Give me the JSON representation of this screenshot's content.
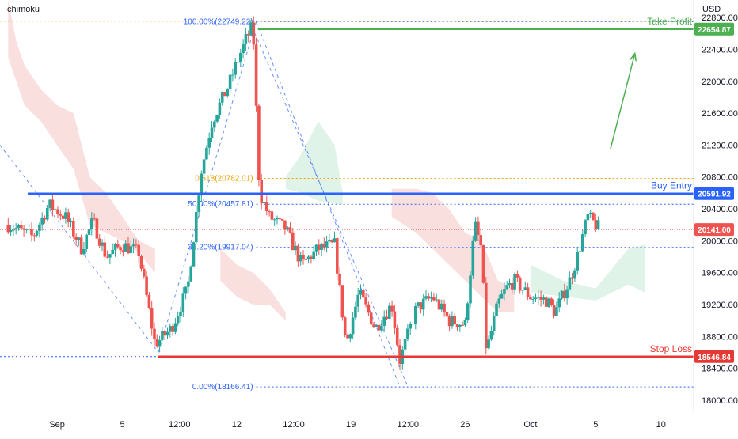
{
  "indicator_label": "Ichimoku",
  "currency_label": "USD",
  "colors": {
    "up": "#26a69a",
    "down": "#ef5350",
    "cloud_bear": "#f8d7d6",
    "cloud_bull": "#d8f0e2",
    "take_profit": "#4caf50",
    "buy_entry": "#2962ff",
    "stop_loss": "#e53935",
    "fib": "#2962ff",
    "fib_618": "#f0a000",
    "current": "#ef5350",
    "arrow": "#4caf50"
  },
  "annotations": {
    "take_profit": {
      "label": "Take Profit",
      "price": 22654.87,
      "badge": "22654.87"
    },
    "buy_entry": {
      "label": "Buy Entry",
      "price": 20591.92,
      "badge": "20591.92"
    },
    "stop_loss": {
      "label": "Stop Loss",
      "price": 18546.84,
      "badge": "18546.84"
    },
    "current_price": {
      "price": 20141.0,
      "badge": "20141.00"
    }
  },
  "chart_data": {
    "type": "candlestick",
    "title": "",
    "ylabel": "USD",
    "ylim": [
      17860,
      23020
    ],
    "price_ticks": [
      {
        "value": 22800,
        "label": "22800.00"
      },
      {
        "value": 22400,
        "label": "22400.00"
      },
      {
        "value": 22000,
        "label": "22000.00"
      },
      {
        "value": 21600,
        "label": "21600.00"
      },
      {
        "value": 21200,
        "label": "21200.00"
      },
      {
        "value": 20800,
        "label": "20800.00"
      },
      {
        "value": 20400,
        "label": "20400.00"
      },
      {
        "value": 20000,
        "label": "20000.00"
      },
      {
        "value": 19600,
        "label": "19600.00"
      },
      {
        "value": 19200,
        "label": "19200.00"
      },
      {
        "value": 18800,
        "label": "18800.00"
      },
      {
        "value": 18400,
        "label": "18400.00"
      },
      {
        "value": 18000,
        "label": "18000.00"
      }
    ],
    "date_ticks": [
      {
        "t": 3,
        "label": "Sep"
      },
      {
        "t": 7,
        "label": "5"
      },
      {
        "t": 10.5,
        "label": "12:00"
      },
      {
        "t": 14,
        "label": "12"
      },
      {
        "t": 17.5,
        "label": "12:00"
      },
      {
        "t": 21,
        "label": "19"
      },
      {
        "t": 24.5,
        "label": "12:00"
      },
      {
        "t": 28,
        "label": "26"
      },
      {
        "t": 32,
        "label": "Oct"
      },
      {
        "t": 36,
        "label": "5"
      },
      {
        "t": 40,
        "label": "10"
      }
    ],
    "x_range": [
      -0.5,
      42
    ],
    "fibonacci": [
      {
        "ratio": "100.00%",
        "price": 22749.22,
        "label": "100.00%(22749.22)",
        "style": "dotted"
      },
      {
        "ratio": "0.618",
        "price": 20782.01,
        "label": "0.618(20782.01)",
        "style": "dotted-orange"
      },
      {
        "ratio": "50.00%",
        "price": 20457.81,
        "label": "50.00%(20457.81)",
        "style": "dotted"
      },
      {
        "ratio": "38.20%",
        "price": 19917.04,
        "label": "38.20%(19917.04)",
        "style": "dotted"
      },
      {
        "ratio": "0.00%",
        "price": 18166.41,
        "label": "0.00%(18166.41)",
        "style": "dotted"
      }
    ],
    "candles_path": [
      [
        0,
        20200
      ],
      [
        1.5,
        20050
      ],
      [
        2.5,
        20450
      ],
      [
        3.5,
        20300
      ],
      [
        4.5,
        19900
      ],
      [
        5.2,
        20250
      ],
      [
        6,
        19800
      ],
      [
        7,
        19950
      ],
      [
        8,
        19850
      ],
      [
        9,
        18700
      ],
      [
        10,
        18900
      ],
      [
        11,
        19400
      ],
      [
        11.8,
        20850
      ],
      [
        12.5,
        21500
      ],
      [
        13.5,
        21950
      ],
      [
        14.5,
        22500
      ],
      [
        15,
        22700
      ],
      [
        15.4,
        20600
      ],
      [
        16,
        20300
      ],
      [
        17,
        20150
      ],
      [
        18,
        19700
      ],
      [
        19,
        19900
      ],
      [
        20,
        19950
      ],
      [
        20.7,
        18700
      ],
      [
        21.5,
        19350
      ],
      [
        22.5,
        18900
      ],
      [
        23.5,
        19200
      ],
      [
        24,
        18500
      ],
      [
        25,
        19150
      ],
      [
        26,
        19300
      ],
      [
        27,
        19000
      ],
      [
        28,
        18950
      ],
      [
        28.6,
        20200
      ],
      [
        29,
        19900
      ],
      [
        29.3,
        18600
      ],
      [
        30,
        19200
      ],
      [
        30.5,
        19400
      ],
      [
        31,
        19500
      ],
      [
        32,
        19300
      ],
      [
        33,
        19250
      ],
      [
        33.5,
        19100
      ],
      [
        34.5,
        19550
      ],
      [
        35,
        19900
      ],
      [
        35.5,
        20300
      ],
      [
        36,
        20200
      ],
      [
        36.3,
        20141
      ]
    ],
    "cloud_bear_poly": [
      [
        0,
        23020
      ],
      [
        0.5,
        22500
      ],
      [
        1,
        22200
      ],
      [
        2,
        21900
      ],
      [
        3,
        21700
      ],
      [
        4,
        21600
      ],
      [
        5,
        20800
      ],
      [
        6,
        20600
      ],
      [
        7,
        20300
      ],
      [
        8,
        20000
      ],
      [
        9,
        19900
      ],
      [
        9,
        19600
      ],
      [
        8,
        19850
      ],
      [
        7,
        20000
      ],
      [
        6,
        20100
      ],
      [
        5,
        20200
      ],
      [
        4,
        20900
      ],
      [
        3,
        21200
      ],
      [
        2,
        21500
      ],
      [
        1,
        21700
      ],
      [
        0,
        22300
      ]
    ],
    "cloud_bear_poly2": [
      [
        13,
        19900
      ],
      [
        14,
        19700
      ],
      [
        15,
        19600
      ],
      [
        16,
        19400
      ],
      [
        17,
        19100
      ],
      [
        17,
        19000
      ],
      [
        16,
        19200
      ],
      [
        15,
        19200
      ],
      [
        14,
        19300
      ],
      [
        13,
        19500
      ]
    ],
    "cloud_bull_poly": [
      [
        17,
        20800
      ],
      [
        18,
        21100
      ],
      [
        19,
        21500
      ],
      [
        20,
        21200
      ],
      [
        20.5,
        20600
      ],
      [
        20.5,
        20450
      ],
      [
        19,
        20500
      ],
      [
        18,
        20600
      ],
      [
        17,
        20650
      ]
    ],
    "cloud_bear_poly3": [
      [
        23.5,
        20650
      ],
      [
        25,
        20650
      ],
      [
        26,
        20600
      ],
      [
        27,
        20400
      ],
      [
        28,
        20100
      ],
      [
        29,
        20000
      ],
      [
        30,
        19500
      ],
      [
        31,
        19400
      ],
      [
        31,
        19100
      ],
      [
        30,
        19100
      ],
      [
        29,
        19300
      ],
      [
        28,
        19500
      ],
      [
        27,
        19700
      ],
      [
        26,
        19900
      ],
      [
        25,
        20100
      ],
      [
        23.5,
        20300
      ]
    ],
    "cloud_bull_poly2": [
      [
        32,
        19700
      ],
      [
        34,
        19500
      ],
      [
        36,
        19400
      ],
      [
        38,
        19900
      ],
      [
        39,
        19950
      ],
      [
        39,
        19350
      ],
      [
        38,
        19450
      ],
      [
        36,
        19250
      ],
      [
        34,
        19300
      ],
      [
        32,
        19350
      ]
    ]
  }
}
